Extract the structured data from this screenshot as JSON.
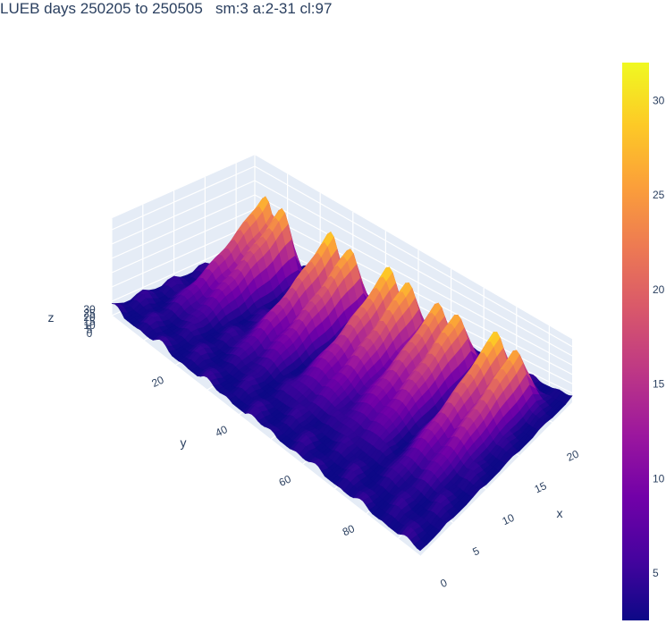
{
  "chart_data": {
    "type": "surface",
    "title": "LUEB days 250205 to 250505   sm:3 a:2-31 cl:97",
    "xlabel": "x",
    "ylabel": "y",
    "zlabel": "z",
    "x_ticks": [
      "0",
      "5",
      "10",
      "15",
      "20"
    ],
    "y_ticks": [
      "20",
      "40",
      "60",
      "80"
    ],
    "z_ticks": [
      "0",
      "5",
      "10",
      "15",
      "20",
      "25",
      "30"
    ],
    "xlim": [
      0,
      23
    ],
    "ylim": [
      0,
      97
    ],
    "zlim": [
      0,
      32
    ],
    "colorscale": "plasma",
    "colorbar_ticks": [
      "5",
      "10",
      "15",
      "20",
      "25",
      "30"
    ],
    "colorbar_range": [
      2.5,
      32
    ],
    "colors": {
      "scene_bg": "#e5ecf6",
      "grid": "#ffffff",
      "text": "#2a3f5f",
      "scale": [
        "#0d0887",
        "#46039f",
        "#7201a8",
        "#9c179e",
        "#bd3786",
        "#d8576b",
        "#ed7953",
        "#fb9f3a",
        "#fdca26",
        "#f0f921"
      ]
    },
    "ridges": [
      {
        "y": 9,
        "height": 27
      },
      {
        "y": 14,
        "height": 26
      },
      {
        "y": 29,
        "height": 28
      },
      {
        "y": 35,
        "height": 27
      },
      {
        "y": 47,
        "height": 29
      },
      {
        "y": 53,
        "height": 28
      },
      {
        "y": 62,
        "height": 26
      },
      {
        "y": 68,
        "height": 27
      },
      {
        "y": 80,
        "height": 29
      },
      {
        "y": 86,
        "height": 26
      }
    ]
  }
}
